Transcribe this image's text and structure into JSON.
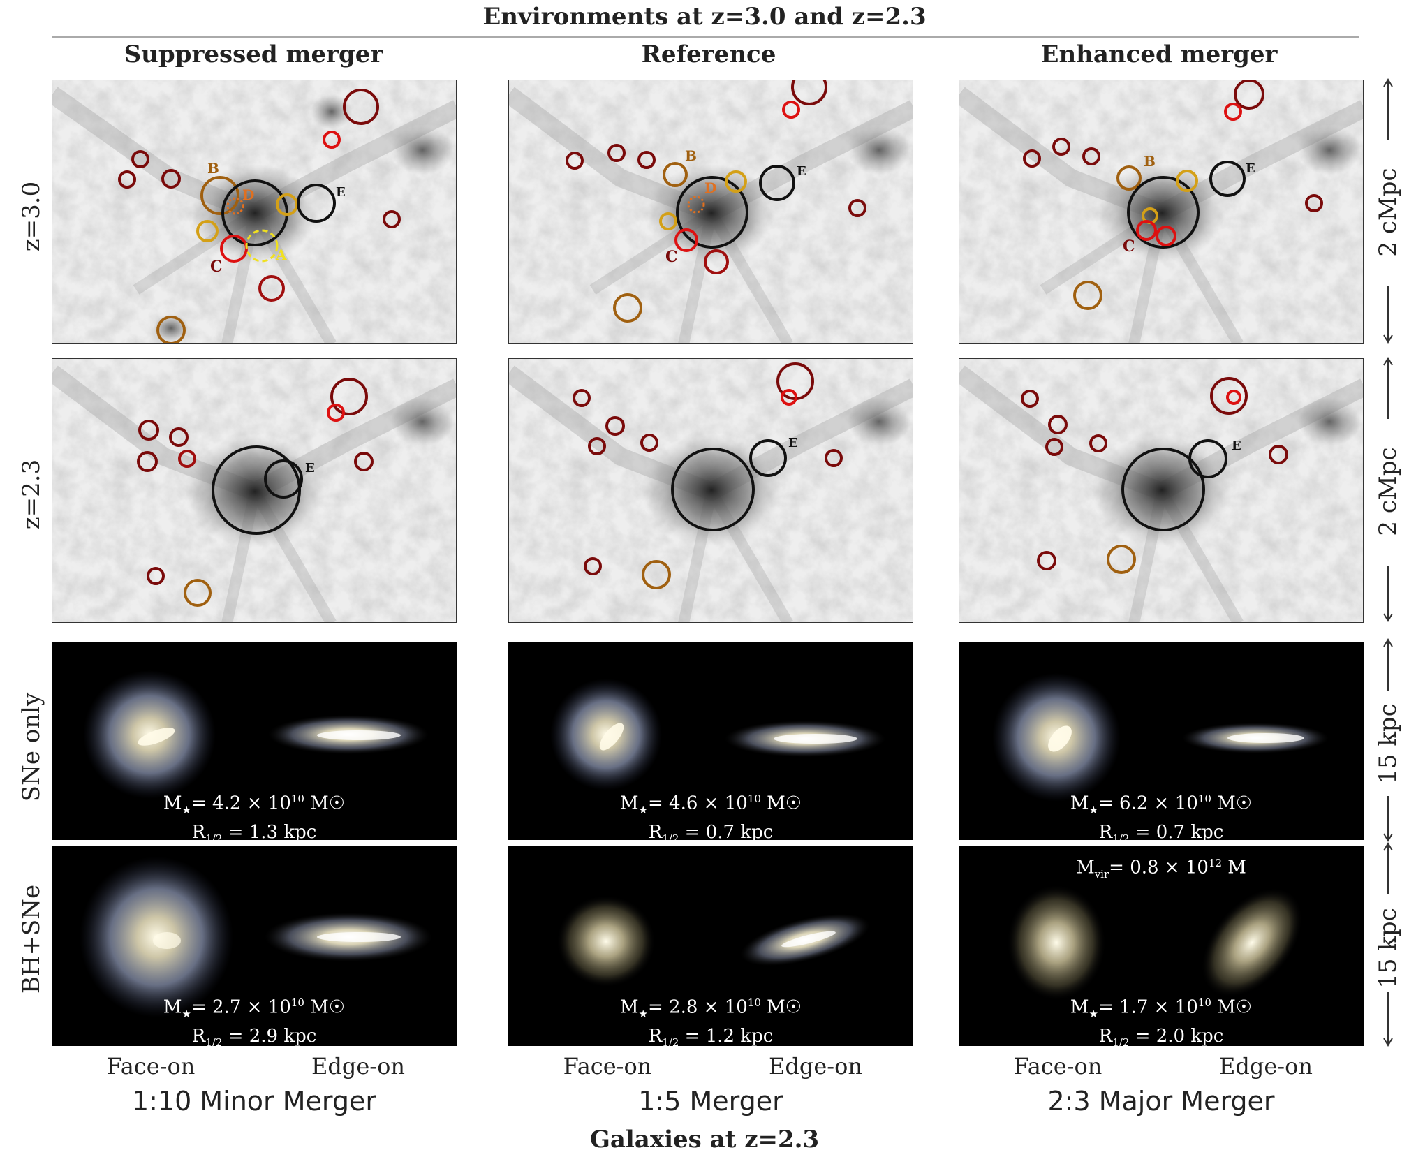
{
  "figure": {
    "top_title": "Environments at z=3.0 and z=2.3",
    "bottom_title": "Galaxies at z=2.3",
    "columns": [
      {
        "title": "Suppressed merger",
        "merger": "1:10 Minor Merger"
      },
      {
        "title": "Reference",
        "merger": "1:5 Merger"
      },
      {
        "title": "Enhanced merger",
        "merger": "2:3 Major Merger"
      }
    ],
    "rows": {
      "env_z30": "z=3.0",
      "env_z23": "z=2.3",
      "sne_only": "SNe only",
      "bh_sne": "BH+SNe"
    },
    "scales": {
      "env": "2 cMpc",
      "gal": "15 kpc"
    },
    "views": {
      "face": "Face-on",
      "edge": "Edge-on"
    },
    "halo_labels": {
      "A": "A",
      "B": "B",
      "C": "C",
      "D": "D",
      "E": "E"
    },
    "galaxies": {
      "sne": [
        {
          "mstar": "4.2",
          "exp": "10",
          "r": "1.3"
        },
        {
          "mstar": "4.6",
          "exp": "10",
          "r": "0.7"
        },
        {
          "mstar": "6.2",
          "exp": "10",
          "r": "0.7"
        }
      ],
      "bh": [
        {
          "mstar": "2.7",
          "exp": "10",
          "r": "2.9"
        },
        {
          "mstar": "2.8",
          "exp": "10",
          "r": "1.2"
        },
        {
          "mstar": "1.7",
          "exp": "10",
          "r": "2.0"
        }
      ],
      "mvir_note": {
        "prefix": "M",
        "sub": "vir",
        "value": "= 0.8 × 10",
        "exp": "12",
        "unit": " M"
      }
    },
    "text_parts": {
      "m": "M",
      "star": "★",
      "eq": "= ",
      "times": " × 10",
      "msun": " M☉",
      "r": "R",
      "half": "1/2",
      "req": " = ",
      "kpc": " kpc"
    },
    "colors": {
      "halo_main": "#111111",
      "halo_dark_red": "#7a0a0a",
      "halo_red": "#dd1111",
      "halo_brown": "#a06010",
      "halo_gold": "#d4a017",
      "halo_yellow_dashed": "#f0e020",
      "label_orange": "#e07020"
    }
  }
}
